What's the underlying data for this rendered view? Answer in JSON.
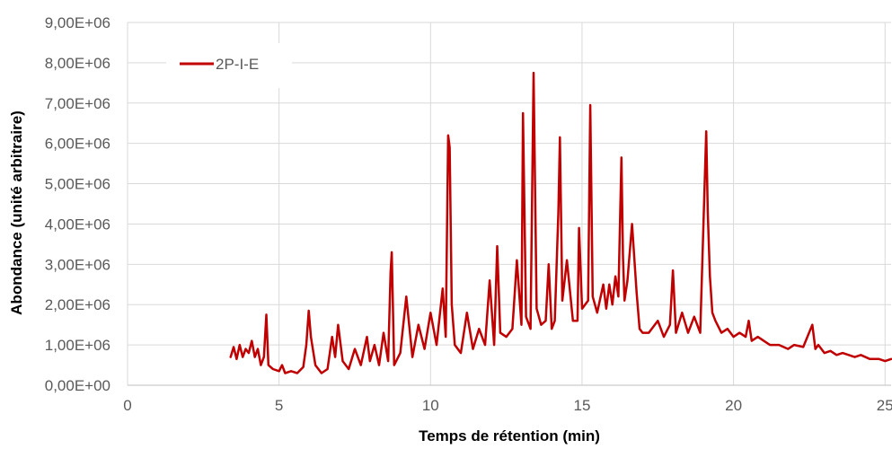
{
  "chart_data": {
    "type": "line",
    "xlabel": "Temps de rétention (min)",
    "ylabel": "Abondance (unité arbitraire)",
    "xlim": [
      0,
      25.2
    ],
    "ylim": [
      0,
      9000000
    ],
    "x_ticks": [
      0,
      5,
      10,
      15,
      20,
      25
    ],
    "x_tick_labels": [
      "0",
      "5",
      "10",
      "15",
      "20",
      "25"
    ],
    "y_ticks": [
      0,
      1000000,
      2000000,
      3000000,
      4000000,
      5000000,
      6000000,
      7000000,
      8000000,
      9000000
    ],
    "y_tick_labels": [
      "0,00E+00",
      "1,00E+06",
      "2,00E+06",
      "3,00E+06",
      "4,00E+06",
      "5,00E+06",
      "6,00E+06",
      "7,00E+06",
      "8,00E+06",
      "9,00E+06"
    ],
    "grid": true,
    "legend": "top-left",
    "series": [
      {
        "name": "2P-I-E",
        "color": "#c00000",
        "x": [
          3.4,
          3.5,
          3.6,
          3.7,
          3.8,
          3.9,
          4.0,
          4.1,
          4.2,
          4.3,
          4.4,
          4.5,
          4.58,
          4.65,
          4.8,
          5.0,
          5.1,
          5.2,
          5.4,
          5.6,
          5.8,
          5.9,
          5.98,
          6.05,
          6.2,
          6.4,
          6.6,
          6.75,
          6.85,
          6.95,
          7.1,
          7.3,
          7.5,
          7.7,
          7.9,
          8.0,
          8.15,
          8.3,
          8.45,
          8.6,
          8.68,
          8.72,
          8.8,
          9.0,
          9.2,
          9.4,
          9.6,
          9.8,
          10.0,
          10.2,
          10.4,
          10.5,
          10.58,
          10.63,
          10.7,
          10.8,
          11.0,
          11.2,
          11.4,
          11.6,
          11.8,
          11.95,
          12.1,
          12.2,
          12.3,
          12.5,
          12.7,
          12.85,
          13.0,
          13.05,
          13.15,
          13.3,
          13.4,
          13.5,
          13.65,
          13.8,
          13.9,
          14.0,
          14.1,
          14.22,
          14.27,
          14.35,
          14.5,
          14.7,
          14.85,
          14.9,
          15.0,
          15.2,
          15.27,
          15.35,
          15.5,
          15.7,
          15.8,
          15.9,
          16.0,
          16.1,
          16.2,
          16.3,
          16.35,
          16.4,
          16.5,
          16.65,
          16.8,
          16.9,
          17.0,
          17.2,
          17.5,
          17.7,
          17.9,
          18.0,
          18.1,
          18.3,
          18.5,
          18.7,
          18.9,
          19.1,
          19.15,
          19.22,
          19.3,
          19.4,
          19.6,
          19.8,
          20.0,
          20.2,
          20.4,
          20.5,
          20.6,
          20.8,
          21.0,
          21.2,
          21.5,
          21.8,
          22.0,
          22.3,
          22.6,
          22.7,
          22.8,
          23.0,
          23.2,
          23.4,
          23.6,
          23.8,
          24.0,
          24.2,
          24.5,
          24.8,
          25.0,
          25.2
        ],
        "y": [
          700000,
          950000,
          650000,
          1000000,
          700000,
          900000,
          800000,
          1100000,
          700000,
          900000,
          500000,
          700000,
          1750000,
          500000,
          400000,
          350000,
          500000,
          300000,
          350000,
          300000,
          450000,
          1000000,
          1850000,
          1200000,
          500000,
          300000,
          400000,
          1200000,
          700000,
          1500000,
          600000,
          400000,
          900000,
          500000,
          1200000,
          600000,
          1000000,
          500000,
          1300000,
          600000,
          2800000,
          3300000,
          500000,
          800000,
          2200000,
          700000,
          1500000,
          900000,
          1800000,
          1000000,
          2400000,
          1200000,
          6200000,
          5900000,
          2000000,
          1000000,
          800000,
          1800000,
          900000,
          1400000,
          1000000,
          2600000,
          1000000,
          3450000,
          1300000,
          1200000,
          1400000,
          3100000,
          1500000,
          6750000,
          1700000,
          1400000,
          7750000,
          1900000,
          1500000,
          1600000,
          3000000,
          1400000,
          1600000,
          4300000,
          6150000,
          2100000,
          3100000,
          1600000,
          1600000,
          3900000,
          1900000,
          2100000,
          6950000,
          2200000,
          1800000,
          2500000,
          1900000,
          2500000,
          2000000,
          2700000,
          2200000,
          5650000,
          3200000,
          2100000,
          2600000,
          4000000,
          2300000,
          1400000,
          1300000,
          1300000,
          1600000,
          1200000,
          1500000,
          2850000,
          1300000,
          1800000,
          1300000,
          1700000,
          1300000,
          6300000,
          4300000,
          2700000,
          1800000,
          1600000,
          1300000,
          1400000,
          1200000,
          1300000,
          1200000,
          1600000,
          1100000,
          1200000,
          1100000,
          1000000,
          1000000,
          900000,
          1000000,
          950000,
          1500000,
          900000,
          1000000,
          800000,
          850000,
          750000,
          800000,
          750000,
          700000,
          750000,
          650000,
          650000,
          600000,
          650000
        ]
      }
    ]
  }
}
